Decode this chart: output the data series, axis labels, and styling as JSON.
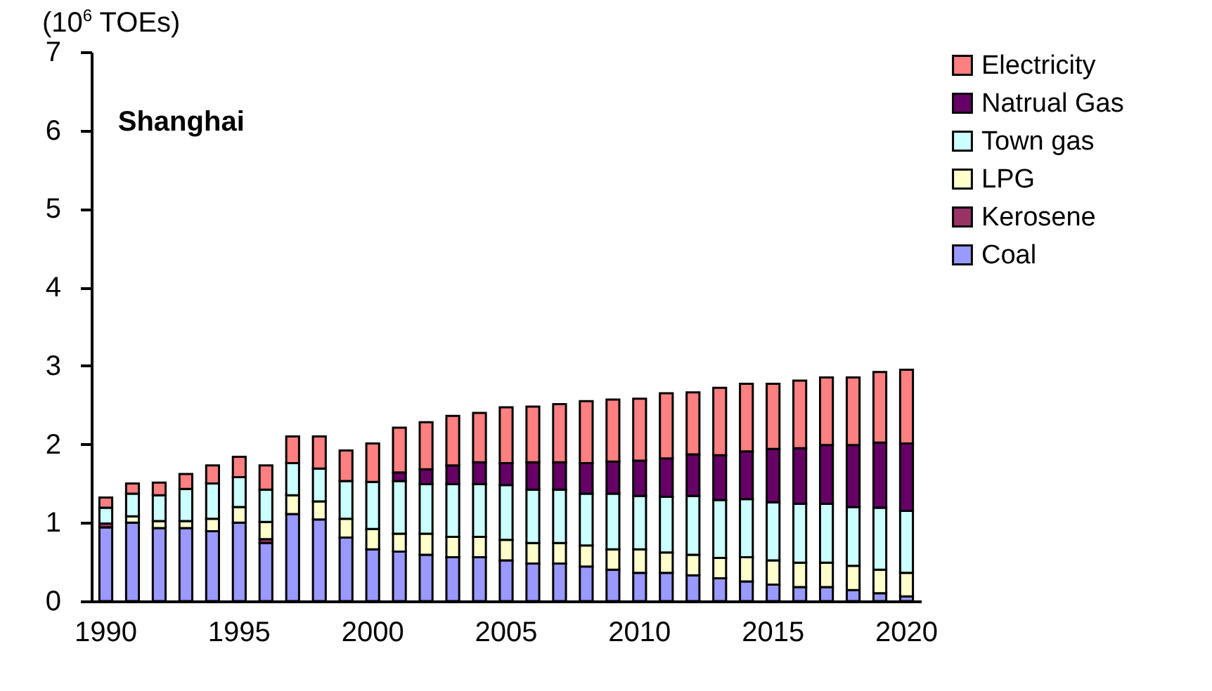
{
  "chart_data": {
    "type": "bar",
    "title": "Shanghai",
    "ylabel": "(10$^{6}$ TOEs)",
    "categories": [
      "1990",
      null,
      null,
      null,
      null,
      "1995",
      null,
      null,
      null,
      null,
      "2000",
      null,
      null,
      null,
      null,
      "2005",
      null,
      null,
      null,
      null,
      "2010",
      null,
      null,
      null,
      null,
      "2015",
      null,
      null,
      null,
      null,
      "2020"
    ],
    "stacked": true,
    "ylim": [
      0,
      7
    ],
    "yticks": [
      0,
      1,
      2,
      3,
      4,
      5,
      6,
      7
    ],
    "grid": false,
    "legend": "right",
    "series": [
      {
        "name": "Coal",
        "color": "#9999ff",
        "values": [
          0.94,
          1.0,
          0.93,
          0.93,
          0.89,
          1.0,
          0.74,
          1.11,
          1.04,
          0.81,
          0.66,
          0.63,
          0.59,
          0.56,
          0.56,
          0.52,
          0.48,
          0.48,
          0.44,
          0.4,
          0.36,
          0.36,
          0.33,
          0.29,
          0.25,
          0.21,
          0.18,
          0.18,
          0.14,
          0.1,
          0.06
        ]
      },
      {
        "name": "Kerosene",
        "color": "#993366",
        "values": [
          0.05,
          null,
          null,
          null,
          null,
          null,
          0.05,
          null,
          null,
          null,
          null,
          null,
          null,
          null,
          null,
          null,
          null,
          null,
          null,
          null,
          null,
          null,
          null,
          null,
          null,
          null,
          null,
          null,
          null,
          null,
          null
        ]
      },
      {
        "name": "LPG",
        "color": "#ffffcc",
        "values": [
          null,
          0.08,
          0.09,
          0.09,
          0.16,
          0.2,
          0.22,
          0.24,
          0.23,
          0.24,
          0.26,
          0.23,
          0.27,
          0.26,
          0.26,
          0.26,
          0.26,
          0.26,
          0.27,
          0.26,
          0.3,
          0.26,
          0.26,
          0.26,
          0.31,
          0.31,
          0.31,
          0.31,
          0.31,
          0.3,
          0.3
        ]
      },
      {
        "name": "Town gas",
        "color": "#ccffff",
        "values": [
          0.2,
          0.29,
          0.33,
          0.41,
          0.45,
          0.38,
          0.41,
          0.41,
          0.42,
          0.48,
          0.6,
          0.67,
          0.63,
          0.67,
          0.67,
          0.7,
          0.68,
          0.68,
          0.66,
          0.71,
          0.68,
          0.71,
          0.75,
          0.74,
          0.74,
          0.74,
          0.75,
          0.75,
          0.75,
          0.79,
          0.79
        ]
      },
      {
        "name": "Natrual Gas",
        "color": "#660066",
        "values": [
          null,
          null,
          null,
          null,
          null,
          null,
          null,
          null,
          null,
          null,
          null,
          0.11,
          0.19,
          0.24,
          0.28,
          0.28,
          0.35,
          0.35,
          0.39,
          0.41,
          0.45,
          0.49,
          0.53,
          0.57,
          0.61,
          0.68,
          0.71,
          0.75,
          0.79,
          0.83,
          0.86
        ]
      },
      {
        "name": "Electricity",
        "color": "#ff8080",
        "values": [
          0.13,
          0.13,
          0.16,
          0.19,
          0.23,
          0.26,
          0.31,
          0.34,
          0.41,
          0.39,
          0.49,
          0.57,
          0.6,
          0.63,
          0.63,
          0.71,
          0.71,
          0.74,
          0.79,
          0.79,
          0.79,
          0.83,
          0.79,
          0.86,
          0.86,
          0.83,
          0.86,
          0.86,
          0.86,
          0.9,
          0.94
        ]
      }
    ]
  }
}
